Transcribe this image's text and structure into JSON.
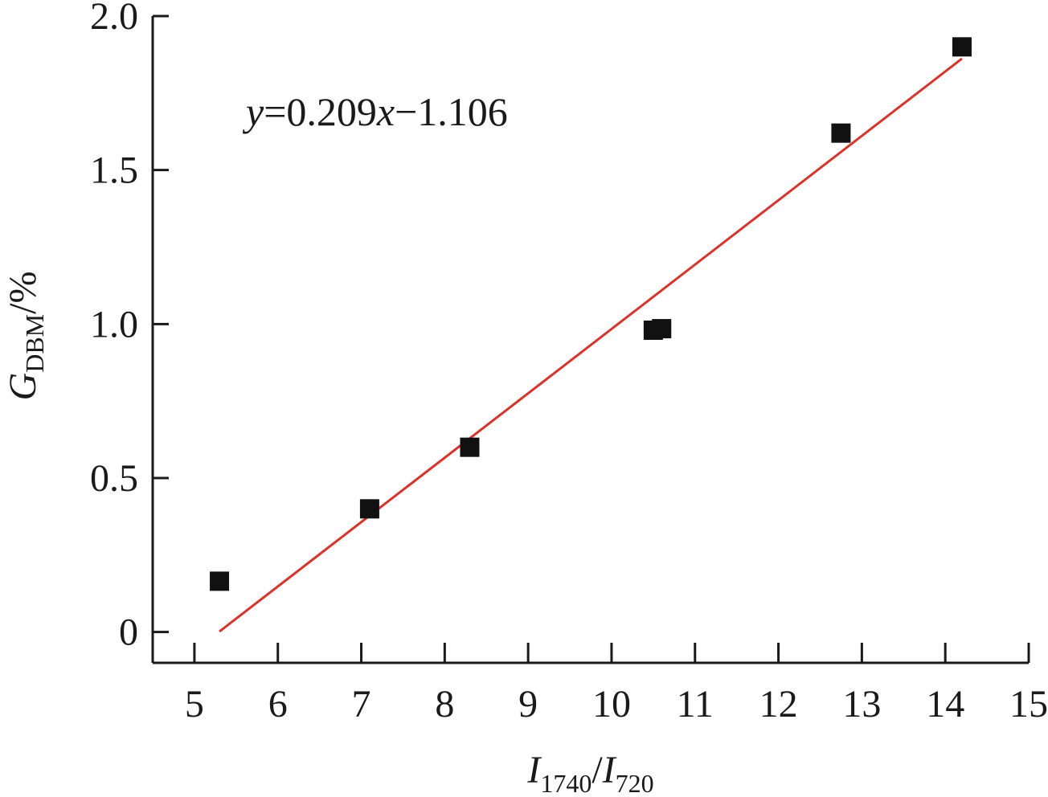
{
  "chart_data": {
    "type": "scatter",
    "xlabel": {
      "main": "I",
      "sub1": "1740",
      "slash": "/",
      "main2": "I",
      "sub2": "720"
    },
    "ylabel": {
      "main": "G",
      "sub": "DBM",
      "unit": "/%"
    },
    "xlim": [
      4.5,
      15
    ],
    "ylim": [
      -0.1,
      2.0
    ],
    "xticks": [
      5,
      6,
      7,
      8,
      9,
      10,
      11,
      12,
      13,
      14,
      15
    ],
    "xtick_labels": [
      "5",
      "6",
      "7",
      "8",
      "9",
      "10",
      "11",
      "12",
      "13",
      "14",
      "15"
    ],
    "yticks": [
      0,
      0.5,
      1.0,
      1.5,
      2.0
    ],
    "ytick_labels": [
      "0",
      "0.5",
      "1.0",
      "1.5",
      "2.0"
    ],
    "grid": false,
    "series": [
      {
        "marker": "square",
        "color": "#111111",
        "x": [
          5.3,
          7.1,
          8.3,
          10.5,
          10.6,
          12.75,
          14.2
        ],
        "y": [
          0.165,
          0.4,
          0.6,
          0.98,
          0.985,
          1.62,
          1.9
        ]
      }
    ],
    "fit_line": {
      "color": "#d9342b",
      "slope": 0.209,
      "intercept": -1.106,
      "x_range": [
        5.3,
        14.2
      ]
    },
    "annotation": {
      "var_y": "y",
      "middle": "=0.209",
      "var_x": "x",
      "tail": "−1.106"
    }
  }
}
